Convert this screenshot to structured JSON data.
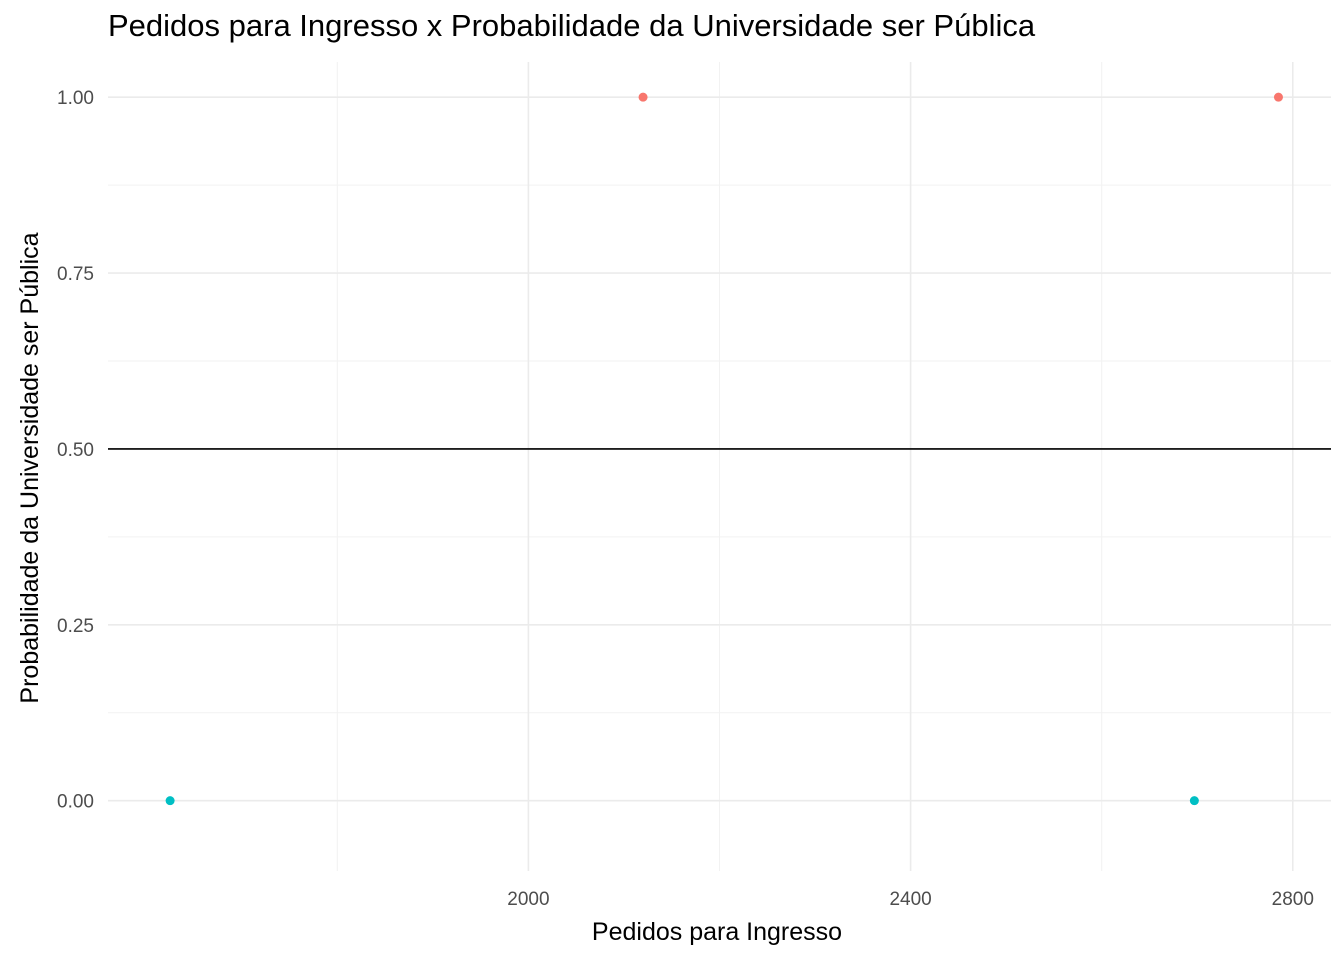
{
  "chart_data": {
    "type": "scatter",
    "title": "Pedidos para Ingresso x Probabilidade da Universidade ser Pública",
    "xlabel": "Pedidos para Ingresso",
    "ylabel": "Probabilidade da Universidade ser Pública",
    "xlim": [
      1560,
      2840
    ],
    "ylim": [
      -0.1,
      1.05
    ],
    "x_ticks": [
      2000,
      2400,
      2800
    ],
    "x_tick_labels": [
      "2000",
      "2400",
      "2800"
    ],
    "x_minor_ticks": [
      1800,
      2200,
      2600
    ],
    "y_ticks": [
      0,
      0.25,
      0.5,
      0.75,
      1
    ],
    "y_tick_labels": [
      "0.00",
      "0.25",
      "0.50",
      "0.75",
      "1.00"
    ],
    "y_minor_ticks": [
      0.125,
      0.375,
      0.625,
      0.875
    ],
    "grid": true,
    "hline": 0.5,
    "points": [
      {
        "x": 1625,
        "y": 0,
        "color": "#00BFC4"
      },
      {
        "x": 2120,
        "y": 1,
        "color": "#F8766D"
      },
      {
        "x": 2697,
        "y": 0,
        "color": "#00BFC4"
      },
      {
        "x": 2785,
        "y": 1,
        "color": "#F8766D"
      }
    ]
  }
}
